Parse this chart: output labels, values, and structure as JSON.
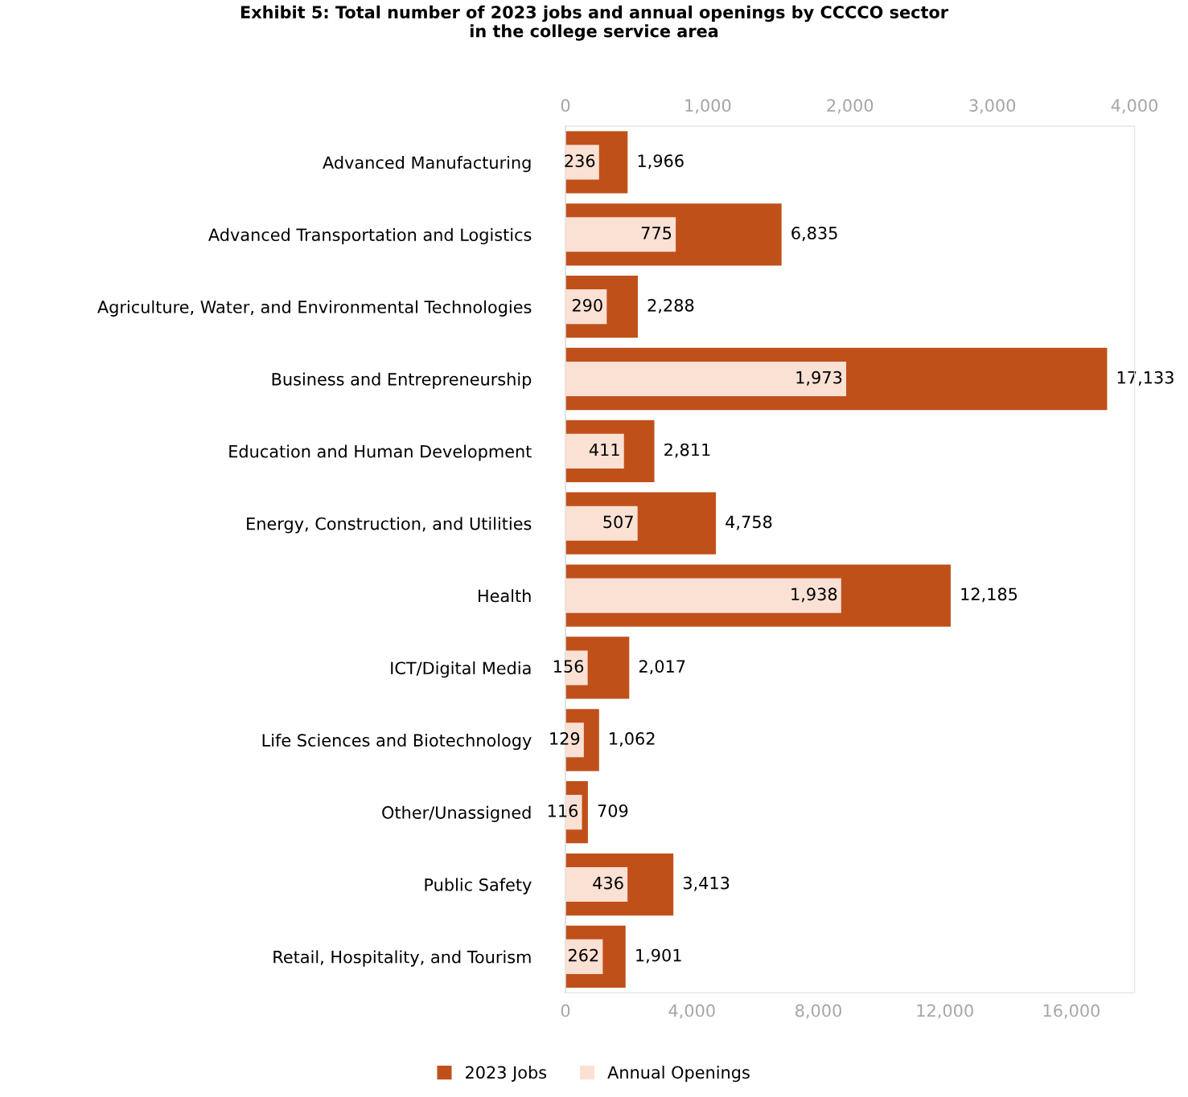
{
  "chart_data": {
    "type": "bar",
    "orientation": "horizontal",
    "title": "Exhibit 5: Total number of 2023 jobs and annual openings by CCCCO sector\nin the college service area",
    "categories": [
      "Advanced Manufacturing",
      "Advanced Transportation and Logistics",
      "Agriculture, Water, and Environmental Technologies",
      "Business and Entrepreneurship",
      "Education and Human Development",
      "Energy, Construction, and Utilities",
      "Health",
      "ICT/Digital Media",
      "Life Sciences and Biotechnology",
      "Other/Unassigned",
      "Public Safety",
      "Retail, Hospitality, and Tourism"
    ],
    "series": [
      {
        "name": "2023 Jobs",
        "color": "#c0501a",
        "values": [
          1966,
          6835,
          2288,
          17133,
          2811,
          4758,
          12185,
          2017,
          1062,
          709,
          3413,
          1901
        ],
        "value_labels": [
          "1,966",
          "6,835",
          "2,288",
          "17,133",
          "2,811",
          "4,758",
          "12,185",
          "2,017",
          "1,062",
          "709",
          "3,413",
          "1,901"
        ]
      },
      {
        "name": "Annual Openings",
        "color": "#fbe0d4",
        "axis": "x2",
        "values": [
          236,
          775,
          290,
          1973,
          411,
          507,
          1938,
          156,
          129,
          116,
          436,
          262
        ],
        "value_labels": [
          "236",
          "775",
          "290",
          "1,973",
          "411",
          "507",
          "1,938",
          "156",
          "129",
          "116",
          "436",
          "262"
        ]
      }
    ],
    "xlim": [
      0,
      18000
    ],
    "xticks": [
      0,
      {
        "value": 4000,
        "label": "4,000"
      },
      {
        "value": 8000,
        "label": "8,000"
      },
      {
        "value": 12000,
        "label": "12,000"
      },
      {
        "value": 16000,
        "label": "16,000"
      }
    ],
    "x2lim": [
      0,
      4000
    ],
    "x2ticks": [
      0,
      {
        "value": 1000,
        "label": "1,000"
      },
      {
        "value": 2000,
        "label": "2,000"
      },
      {
        "value": 3000,
        "label": "3,000"
      },
      {
        "value": 4000,
        "label": "4,000"
      }
    ],
    "grid": false,
    "legend": "bottom"
  }
}
